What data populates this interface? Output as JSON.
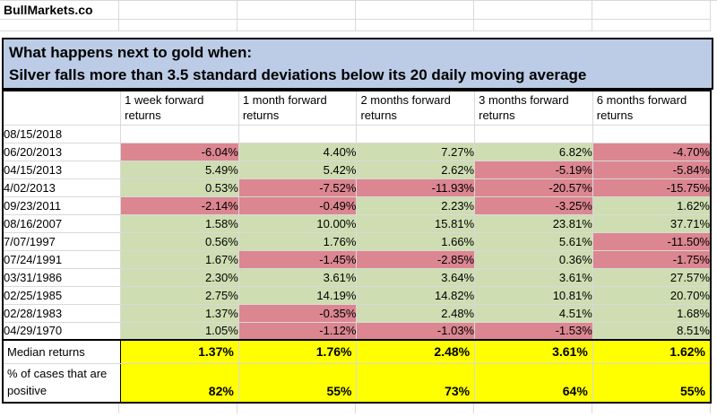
{
  "brand": "BullMarkets.co",
  "banner": {
    "line1": "What happens next to gold when:",
    "line2": "Silver falls more than 3.5 standard deviations below its 20 daily moving average"
  },
  "table": {
    "columns": [
      "1 week forward returns",
      "1 month forward returns",
      "2 months forward returns",
      "3 months forward returns",
      "6 months forward returns"
    ],
    "rows": [
      {
        "date": "08/15/2018",
        "values": [
          "",
          "",
          "",
          "",
          ""
        ]
      },
      {
        "date": "06/20/2013",
        "values": [
          "-6.04%",
          "4.40%",
          "7.27%",
          "6.82%",
          "-4.70%"
        ]
      },
      {
        "date": "04/15/2013",
        "values": [
          "5.49%",
          "5.42%",
          "2.62%",
          "-5.19%",
          "-5.84%"
        ]
      },
      {
        "date": "4/02/2013",
        "values": [
          "0.53%",
          "-7.52%",
          "-11.93%",
          "-20.57%",
          "-15.75%"
        ]
      },
      {
        "date": "09/23/2011",
        "values": [
          "-2.14%",
          "-0.49%",
          "2.23%",
          "-3.25%",
          "1.62%"
        ]
      },
      {
        "date": "08/16/2007",
        "values": [
          "1.58%",
          "10.00%",
          "15.81%",
          "23.81%",
          "37.71%"
        ]
      },
      {
        "date": "7/07/1997",
        "values": [
          "0.56%",
          "1.76%",
          "1.66%",
          "5.61%",
          "-11.50%"
        ]
      },
      {
        "date": "07/24/1991",
        "values": [
          "1.67%",
          "-1.45%",
          "-2.85%",
          "0.36%",
          "-1.75%"
        ]
      },
      {
        "date": "03/31/1986",
        "values": [
          "2.30%",
          "3.61%",
          "3.64%",
          "3.61%",
          "27.57%"
        ]
      },
      {
        "date": "02/25/1985",
        "values": [
          "2.75%",
          "14.19%",
          "14.82%",
          "10.81%",
          "20.70%"
        ]
      },
      {
        "date": "02/28/1983",
        "values": [
          "1.37%",
          "-0.35%",
          "2.48%",
          "4.51%",
          "1.68%"
        ]
      },
      {
        "date": "04/29/1970",
        "values": [
          "1.05%",
          "-1.12%",
          "-1.03%",
          "-1.53%",
          "8.51%"
        ]
      }
    ],
    "median": {
      "label": "Median returns",
      "values": [
        "1.37%",
        "1.76%",
        "2.48%",
        "3.61%",
        "1.62%"
      ]
    },
    "positive": {
      "label": "% of cases that are positive",
      "values": [
        "82%",
        "55%",
        "73%",
        "64%",
        "55%"
      ]
    }
  },
  "colors": {
    "banner_bg": "#bccce6",
    "positive_bg": "#ceddb2",
    "negative_bg": "#db8690",
    "summary_bg": "#ffff00"
  }
}
